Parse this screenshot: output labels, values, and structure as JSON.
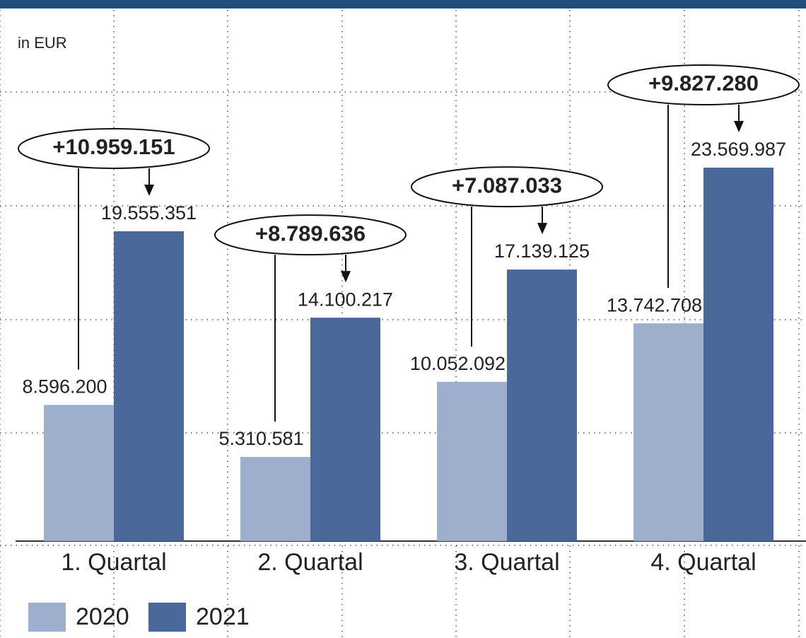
{
  "chart_data": {
    "type": "bar",
    "subtitle": "in EUR",
    "categories": [
      "1. Quartal",
      "2. Quartal",
      "3. Quartal",
      "4. Quartal"
    ],
    "series": [
      {
        "name": "2020",
        "color": "#9dafcd",
        "values": [
          8596200,
          5310581,
          10052092,
          13742708
        ],
        "value_labels": [
          "8.596.200",
          "5.310.581",
          "10.052.092",
          "13.742.708"
        ]
      },
      {
        "name": "2021",
        "color": "#4a6899",
        "values": [
          19555351,
          14100217,
          17139125,
          23569987
        ],
        "value_labels": [
          "19.555.351",
          "14.100.217",
          "17.139.125",
          "23.569.987"
        ]
      }
    ],
    "annotations": [
      "+10.959.151",
      "+8.789.636",
      "+7.087.033",
      "+9.827.280"
    ],
    "ylim": [
      0,
      30000000
    ]
  }
}
